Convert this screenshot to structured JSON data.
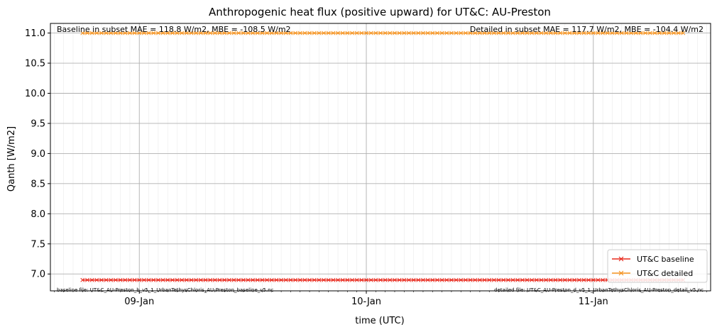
{
  "chart_data": {
    "type": "line",
    "title": "Anthropogenic heat flux (positive upward) for UT&C: AU-Preston",
    "xlabel": "time (UTC)",
    "ylabel": "Qanth [W/m2]",
    "x_ticks": [
      {
        "label": "09-Jan",
        "hour": 0
      },
      {
        "label": "10-Jan",
        "hour": 24
      },
      {
        "label": "11-Jan",
        "hour": 48
      }
    ],
    "xlim_hours": [
      -9.4,
      60.4
    ],
    "ylim": [
      6.72,
      11.16
    ],
    "y_ticks": [
      7.0,
      7.5,
      8.0,
      8.5,
      9.0,
      9.5,
      10.0,
      10.5,
      11.0
    ],
    "y_tick_labels": [
      "7.0",
      "7.5",
      "8.0",
      "8.5",
      "9.0",
      "9.5",
      "10.0",
      "10.5",
      "11.0"
    ],
    "grid": true,
    "x_range_hours": [
      -6.0,
      57.5
    ],
    "step_hours": 0.5,
    "series": [
      {
        "name": "UT&C baseline",
        "color": "#e8281c",
        "constant_value": 6.9
      },
      {
        "name": "UT&C detailed",
        "color": "#f5921e",
        "constant_value": 11.0
      }
    ],
    "legend_position": "lower-right",
    "annotations": {
      "baseline_stats": "Baseline in subset MAE = 118.8 W/m2, MBE = -108.5 W/m2",
      "detailed_stats": "Detailed in subset MAE = 117.7 W/m2, MBE = -104.4 W/m2",
      "baseline_file": "baseline file: UT&C_AU-Preston_b_v5_1_UrbanTethysChloris_AU-Preston_baseline_v5.nc",
      "detailed_file": "detailed file: UT&C_AU-Preston_d_v5_1_UrbanTethysChloris_AU-Preston_detail_v5.nc"
    }
  }
}
